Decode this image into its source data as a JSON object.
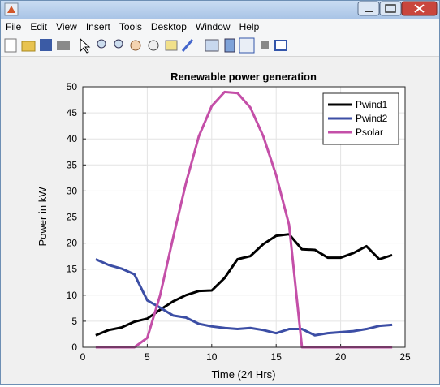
{
  "menu": [
    "File",
    "Edit",
    "View",
    "Insert",
    "Tools",
    "Desktop",
    "Window",
    "Help"
  ],
  "chart_data": {
    "type": "line",
    "title": "Renewable power generation",
    "x_label": "Time (24 Hrs)",
    "y_label": "Power in kW",
    "x": [
      1,
      2,
      3,
      4,
      5,
      6,
      7,
      8,
      9,
      10,
      11,
      12,
      13,
      14,
      15,
      16,
      17,
      18,
      19,
      20,
      21,
      22,
      23,
      24
    ],
    "series": [
      {
        "name": "Pwind1",
        "color": "#000000",
        "values": [
          2.3,
          3.3,
          3.8,
          4.9,
          5.5,
          7.2,
          8.8,
          10.0,
          10.8,
          10.9,
          13.3,
          16.9,
          17.5,
          19.8,
          21.4,
          21.7,
          18.8,
          18.7,
          17.2,
          17.2,
          18.1,
          19.4,
          16.9,
          17.7
        ]
      },
      {
        "name": "Pwind2",
        "color": "#3c4ea5",
        "values": [
          16.9,
          15.8,
          15.1,
          14.0,
          9.0,
          7.6,
          6.1,
          5.7,
          4.5,
          4.0,
          3.7,
          3.5,
          3.7,
          3.3,
          2.7,
          3.5,
          3.5,
          2.3,
          2.7,
          2.9,
          3.1,
          3.5,
          4.1,
          4.3
        ]
      },
      {
        "name": "Psolar",
        "color": "#c44fa8",
        "values": [
          0,
          0,
          0,
          0,
          1.8,
          10,
          21,
          31.5,
          40.5,
          46.3,
          49,
          48.8,
          46,
          40.5,
          33,
          23.5,
          0,
          0,
          0,
          0,
          0,
          0,
          0,
          0
        ]
      }
    ],
    "xlim": [
      0,
      25
    ],
    "xticks": [
      0,
      5,
      10,
      15,
      20,
      25
    ],
    "ylim": [
      0,
      50
    ],
    "yticks": [
      0,
      5,
      10,
      15,
      20,
      25,
      30,
      35,
      40,
      45,
      50
    ],
    "grid": true,
    "legend": "top-right"
  }
}
